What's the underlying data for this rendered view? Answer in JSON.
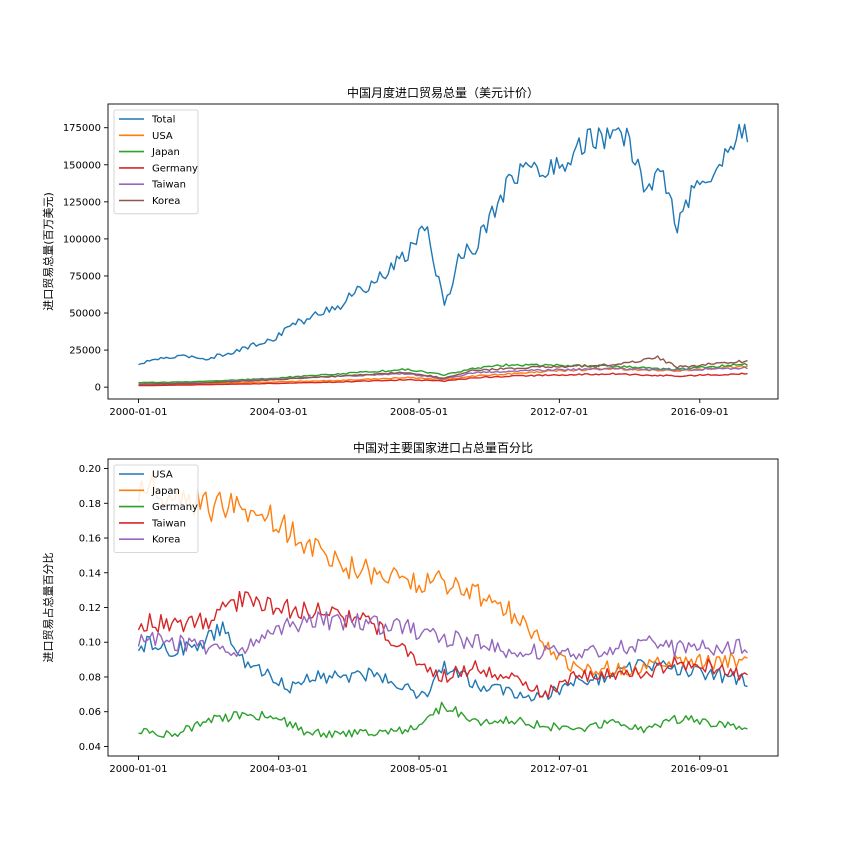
{
  "chart_data": [
    {
      "type": "line",
      "title": "中国月度进口贸易总量（美元计价）",
      "xlabel": "",
      "ylabel": "进口贸易总量(百万美元)",
      "x_tick_labels": [
        "2000-01-01",
        "2004-03-01",
        "2008-05-01",
        "2012-07-01",
        "2016-09-01"
      ],
      "x_range": [
        "2000-01-01",
        "2018-02-01"
      ],
      "y_ticks": [
        0,
        25000,
        50000,
        75000,
        100000,
        125000,
        150000,
        175000
      ],
      "y_tick_labels": [
        "0",
        "25000",
        "50000",
        "75000",
        "100000",
        "125000",
        "150000",
        "175000"
      ],
      "ylim": [
        -8000,
        191000
      ],
      "legend_position": "upper-left",
      "series": [
        {
          "name": "Total",
          "color": "#1f77b4",
          "points": [
            [
              "2000-01-01",
              15000
            ],
            [
              "2000-07-01",
              19000
            ],
            [
              "2001-01-01",
              20000
            ],
            [
              "2001-07-01",
              21000
            ],
            [
              "2002-01-01",
              19000
            ],
            [
              "2002-07-01",
              22000
            ],
            [
              "2003-01-01",
              25000
            ],
            [
              "2003-07-01",
              29000
            ],
            [
              "2004-01-01",
              32000
            ],
            [
              "2004-07-01",
              42000
            ],
            [
              "2005-01-01",
              45000
            ],
            [
              "2005-07-01",
              52000
            ],
            [
              "2006-01-01",
              55000
            ],
            [
              "2006-07-01",
              65000
            ],
            [
              "2007-01-01",
              70000
            ],
            [
              "2007-07-01",
              80000
            ],
            [
              "2008-01-01",
              90000
            ],
            [
              "2008-07-01",
              110000
            ],
            [
              "2008-12-01",
              72000
            ],
            [
              "2009-02-01",
              52000
            ],
            [
              "2009-07-01",
              88000
            ],
            [
              "2010-01-01",
              95000
            ],
            [
              "2010-07-01",
              118000
            ],
            [
              "2011-01-01",
              140000
            ],
            [
              "2011-07-01",
              148000
            ],
            [
              "2012-01-01",
              145000
            ],
            [
              "2012-07-01",
              150000
            ],
            [
              "2013-01-01",
              160000
            ],
            [
              "2013-07-01",
              170000
            ],
            [
              "2014-01-01",
              165000
            ],
            [
              "2014-07-01",
              170000
            ],
            [
              "2015-01-01",
              135000
            ],
            [
              "2015-07-01",
              145000
            ],
            [
              "2016-01-01",
              110000
            ],
            [
              "2016-07-01",
              135000
            ],
            [
              "2017-01-01",
              140000
            ],
            [
              "2017-07-01",
              160000
            ],
            [
              "2018-01-01",
              175000
            ]
          ]
        },
        {
          "name": "USA",
          "color": "#ff7f0e",
          "points": [
            [
              "2000-01-01",
              1800
            ],
            [
              "2002-01-01",
              2200
            ],
            [
              "2004-01-01",
              3500
            ],
            [
              "2006-01-01",
              4500
            ],
            [
              "2008-01-01",
              6500
            ],
            [
              "2009-02-01",
              5000
            ],
            [
              "2010-01-01",
              7500
            ],
            [
              "2012-01-01",
              10500
            ],
            [
              "2014-01-01",
              12500
            ],
            [
              "2016-01-01",
              11000
            ],
            [
              "2018-01-01",
              14000
            ]
          ]
        },
        {
          "name": "Japan",
          "color": "#2ca02c",
          "points": [
            [
              "2000-01-01",
              3000
            ],
            [
              "2002-01-01",
              3800
            ],
            [
              "2004-01-01",
              6000
            ],
            [
              "2006-01-01",
              9000
            ],
            [
              "2008-01-01",
              12000
            ],
            [
              "2009-02-01",
              8000
            ],
            [
              "2010-01-01",
              13000
            ],
            [
              "2011-01-01",
              15000
            ],
            [
              "2012-01-01",
              15000
            ],
            [
              "2014-01-01",
              14000
            ],
            [
              "2016-01-01",
              12000
            ],
            [
              "2018-01-01",
              15500
            ]
          ]
        },
        {
          "name": "Germany",
          "color": "#d62728",
          "points": [
            [
              "2000-01-01",
              1000
            ],
            [
              "2002-01-01",
              1700
            ],
            [
              "2004-01-01",
              2500
            ],
            [
              "2006-01-01",
              3500
            ],
            [
              "2008-01-01",
              5000
            ],
            [
              "2009-02-01",
              4000
            ],
            [
              "2010-01-01",
              6500
            ],
            [
              "2012-01-01",
              8000
            ],
            [
              "2014-01-01",
              9000
            ],
            [
              "2016-01-01",
              7500
            ],
            [
              "2018-01-01",
              9000
            ]
          ]
        },
        {
          "name": "Taiwan",
          "color": "#9467bd",
          "points": [
            [
              "2000-01-01",
              2000
            ],
            [
              "2002-01-01",
              3000
            ],
            [
              "2004-01-01",
              5500
            ],
            [
              "2006-01-01",
              7500
            ],
            [
              "2008-01-01",
              9000
            ],
            [
              "2009-02-01",
              5500
            ],
            [
              "2010-01-01",
              10000
            ],
            [
              "2012-01-01",
              11500
            ],
            [
              "2014-01-01",
              12500
            ],
            [
              "2016-01-01",
              11500
            ],
            [
              "2018-01-01",
              13000
            ]
          ]
        },
        {
          "name": "Korea",
          "color": "#8c564b",
          "points": [
            [
              "2000-01-01",
              2000
            ],
            [
              "2002-01-01",
              2800
            ],
            [
              "2004-01-01",
              5000
            ],
            [
              "2006-01-01",
              7500
            ],
            [
              "2008-01-01",
              10000
            ],
            [
              "2009-02-01",
              6000
            ],
            [
              "2010-01-01",
              11500
            ],
            [
              "2012-01-01",
              13500
            ],
            [
              "2014-01-01",
              15000
            ],
            [
              "2015-06-01",
              20000
            ],
            [
              "2016-01-01",
              13500
            ],
            [
              "2018-01-01",
              17500
            ]
          ]
        }
      ]
    },
    {
      "type": "line",
      "title": "中国对主要国家进口占总量百分比",
      "xlabel": "",
      "ylabel": "进口贸易占总量百分比",
      "x_tick_labels": [
        "2000-01-01",
        "2004-03-01",
        "2008-05-01",
        "2012-07-01",
        "2016-09-01"
      ],
      "x_range": [
        "2000-01-01",
        "2018-02-01"
      ],
      "y_ticks": [
        0.04,
        0.06,
        0.08,
        0.1,
        0.12,
        0.14,
        0.16,
        0.18,
        0.2
      ],
      "y_tick_labels": [
        "0.04",
        "0.06",
        "0.08",
        "0.10",
        "0.12",
        "0.14",
        "0.16",
        "0.18",
        "0.20"
      ],
      "ylim": [
        0.0345,
        0.2055
      ],
      "legend_position": "upper-left",
      "series": [
        {
          "name": "USA",
          "color": "#1f77b4",
          "points": [
            [
              "2000-01-01",
              0.1
            ],
            [
              "2001-01-01",
              0.095
            ],
            [
              "2002-01-01",
              0.1
            ],
            [
              "2002-07-01",
              0.11
            ],
            [
              "2003-01-01",
              0.09
            ],
            [
              "2004-01-01",
              0.08
            ],
            [
              "2004-07-01",
              0.074
            ],
            [
              "2005-01-01",
              0.08
            ],
            [
              "2006-01-01",
              0.08
            ],
            [
              "2007-01-01",
              0.082
            ],
            [
              "2008-01-01",
              0.074
            ],
            [
              "2008-07-01",
              0.068
            ],
            [
              "2009-02-01",
              0.086
            ],
            [
              "2010-01-01",
              0.076
            ],
            [
              "2011-01-01",
              0.072
            ],
            [
              "2012-01-01",
              0.068
            ],
            [
              "2013-01-01",
              0.078
            ],
            [
              "2014-01-01",
              0.08
            ],
            [
              "2015-01-01",
              0.088
            ],
            [
              "2016-01-01",
              0.084
            ],
            [
              "2017-01-01",
              0.082
            ],
            [
              "2018-01-01",
              0.078
            ]
          ]
        },
        {
          "name": "Japan",
          "color": "#ff7f0e",
          "points": [
            [
              "2000-01-01",
              0.19
            ],
            [
              "2001-01-01",
              0.185
            ],
            [
              "2002-01-01",
              0.178
            ],
            [
              "2003-01-01",
              0.18
            ],
            [
              "2004-01-01",
              0.17
            ],
            [
              "2005-01-01",
              0.155
            ],
            [
              "2006-01-01",
              0.145
            ],
            [
              "2007-01-01",
              0.14
            ],
            [
              "2008-01-01",
              0.135
            ],
            [
              "2009-01-01",
              0.135
            ],
            [
              "2010-01-01",
              0.128
            ],
            [
              "2011-01-01",
              0.118
            ],
            [
              "2012-01-01",
              0.1
            ],
            [
              "2013-01-01",
              0.085
            ],
            [
              "2014-01-01",
              0.085
            ],
            [
              "2015-01-01",
              0.085
            ],
            [
              "2016-01-01",
              0.09
            ],
            [
              "2017-01-01",
              0.088
            ],
            [
              "2018-01-01",
              0.09
            ]
          ]
        },
        {
          "name": "Germany",
          "color": "#2ca02c",
          "points": [
            [
              "2000-01-01",
              0.05
            ],
            [
              "2001-01-01",
              0.046
            ],
            [
              "2002-01-01",
              0.055
            ],
            [
              "2003-01-01",
              0.058
            ],
            [
              "2004-01-01",
              0.058
            ],
            [
              "2005-01-01",
              0.048
            ],
            [
              "2006-01-01",
              0.047
            ],
            [
              "2007-01-01",
              0.048
            ],
            [
              "2008-01-01",
              0.049
            ],
            [
              "2009-02-01",
              0.064
            ],
            [
              "2010-01-01",
              0.054
            ],
            [
              "2011-01-01",
              0.055
            ],
            [
              "2012-01-01",
              0.052
            ],
            [
              "2013-01-01",
              0.05
            ],
            [
              "2014-01-01",
              0.054
            ],
            [
              "2015-01-01",
              0.05
            ],
            [
              "2016-01-01",
              0.056
            ],
            [
              "2017-01-01",
              0.054
            ],
            [
              "2018-01-01",
              0.052
            ]
          ]
        },
        {
          "name": "Taiwan",
          "color": "#d62728",
          "points": [
            [
              "2000-01-01",
              0.112
            ],
            [
              "2001-01-01",
              0.11
            ],
            [
              "2002-01-01",
              0.112
            ],
            [
              "2003-01-01",
              0.125
            ],
            [
              "2004-01-01",
              0.12
            ],
            [
              "2005-01-01",
              0.118
            ],
            [
              "2006-01-01",
              0.115
            ],
            [
              "2007-01-01",
              0.11
            ],
            [
              "2008-01-01",
              0.095
            ],
            [
              "2009-01-01",
              0.08
            ],
            [
              "2010-01-01",
              0.086
            ],
            [
              "2011-01-01",
              0.08
            ],
            [
              "2012-01-01",
              0.07
            ],
            [
              "2013-01-01",
              0.08
            ],
            [
              "2014-01-01",
              0.082
            ],
            [
              "2015-01-01",
              0.082
            ],
            [
              "2016-01-01",
              0.088
            ],
            [
              "2017-01-01",
              0.086
            ],
            [
              "2018-01-01",
              0.08
            ]
          ]
        },
        {
          "name": "Korea",
          "color": "#9467bd",
          "points": [
            [
              "2000-01-01",
              0.102
            ],
            [
              "2001-01-01",
              0.1
            ],
            [
              "2002-01-01",
              0.098
            ],
            [
              "2003-01-01",
              0.095
            ],
            [
              "2004-01-01",
              0.108
            ],
            [
              "2005-01-01",
              0.112
            ],
            [
              "2006-01-01",
              0.112
            ],
            [
              "2007-01-01",
              0.11
            ],
            [
              "2008-01-01",
              0.108
            ],
            [
              "2009-01-01",
              0.103
            ],
            [
              "2010-01-01",
              0.1
            ],
            [
              "2011-01-01",
              0.095
            ],
            [
              "2012-01-01",
              0.095
            ],
            [
              "2013-01-01",
              0.092
            ],
            [
              "2014-01-01",
              0.095
            ],
            [
              "2015-01-01",
              0.1
            ],
            [
              "2016-01-01",
              0.096
            ],
            [
              "2017-01-01",
              0.097
            ],
            [
              "2018-01-01",
              0.097
            ]
          ]
        }
      ]
    }
  ]
}
